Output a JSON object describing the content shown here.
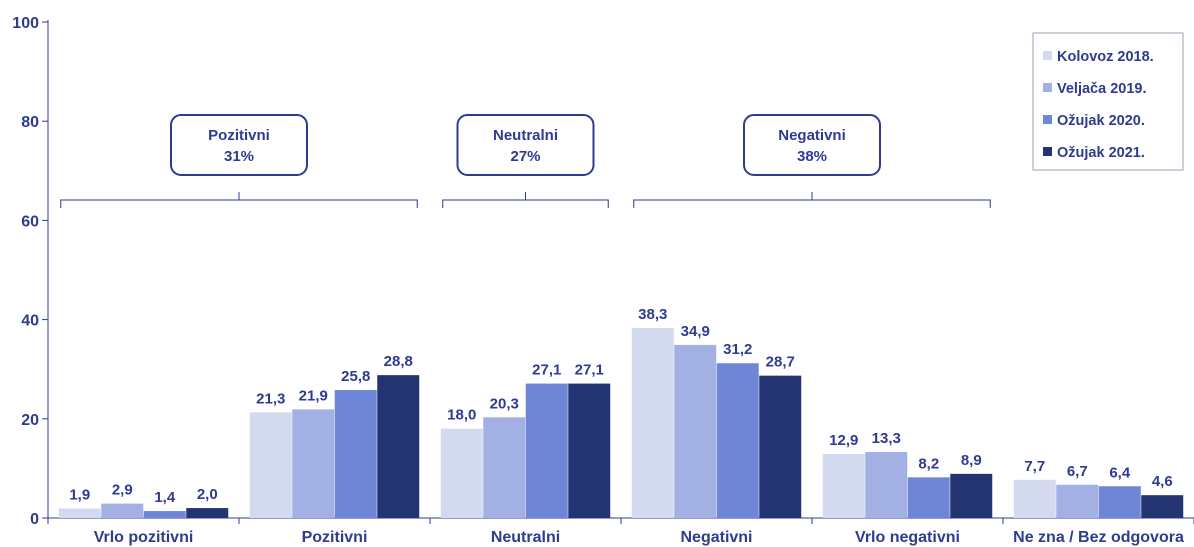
{
  "chart_data": {
    "type": "bar",
    "categories": [
      "Vrlo pozitivni",
      "Pozitivni",
      "Neutralni",
      "Negativni",
      "Vrlo negativni",
      "Ne zna / Bez odgovora"
    ],
    "series": [
      {
        "name": "Kolovoz 2018.",
        "color": "#d3daf0",
        "values": [
          1.9,
          21.3,
          18.0,
          38.3,
          12.9,
          7.7
        ],
        "labels": [
          "1,9",
          "21,3",
          "18,0",
          "38,3",
          "12,9",
          "7,7"
        ]
      },
      {
        "name": "Veljača 2019.",
        "color": "#a2b0e3",
        "values": [
          2.9,
          21.9,
          20.3,
          34.9,
          13.3,
          6.7
        ],
        "labels": [
          "2,9",
          "21,9",
          "20,3",
          "34,9",
          "13,3",
          "6,7"
        ]
      },
      {
        "name": "Ožujak 2020.",
        "color": "#6f86d6",
        "values": [
          1.4,
          25.8,
          27.1,
          31.2,
          8.2,
          6.4
        ],
        "labels": [
          "1,4",
          "25,8",
          "27,1",
          "31,2",
          "8,2",
          "6,4"
        ]
      },
      {
        "name": "Ožujak 2021.",
        "color": "#243473",
        "values": [
          2.0,
          28.8,
          27.1,
          28.7,
          8.9,
          4.6
        ],
        "labels": [
          "2,0",
          "28,8",
          "27,1",
          "28,7",
          "8,9",
          "4,6"
        ]
      }
    ],
    "ylim": [
      0,
      100
    ],
    "yticks": [
      0,
      20,
      40,
      60,
      80,
      100
    ],
    "grid": false,
    "legend_position": "top-right",
    "groups": [
      {
        "label": "Pozitivni",
        "value": "31%",
        "categories": [
          "Vrlo pozitivni",
          "Pozitivni"
        ]
      },
      {
        "label": "Neutralni",
        "value": "27%",
        "categories": [
          "Neutralni"
        ]
      },
      {
        "label": "Negativni",
        "value": "38%",
        "categories": [
          "Negativni",
          "Vrlo negativni"
        ]
      }
    ],
    "colors": {
      "text": "#2f3b8f",
      "axis": "#2f3b8f"
    }
  }
}
